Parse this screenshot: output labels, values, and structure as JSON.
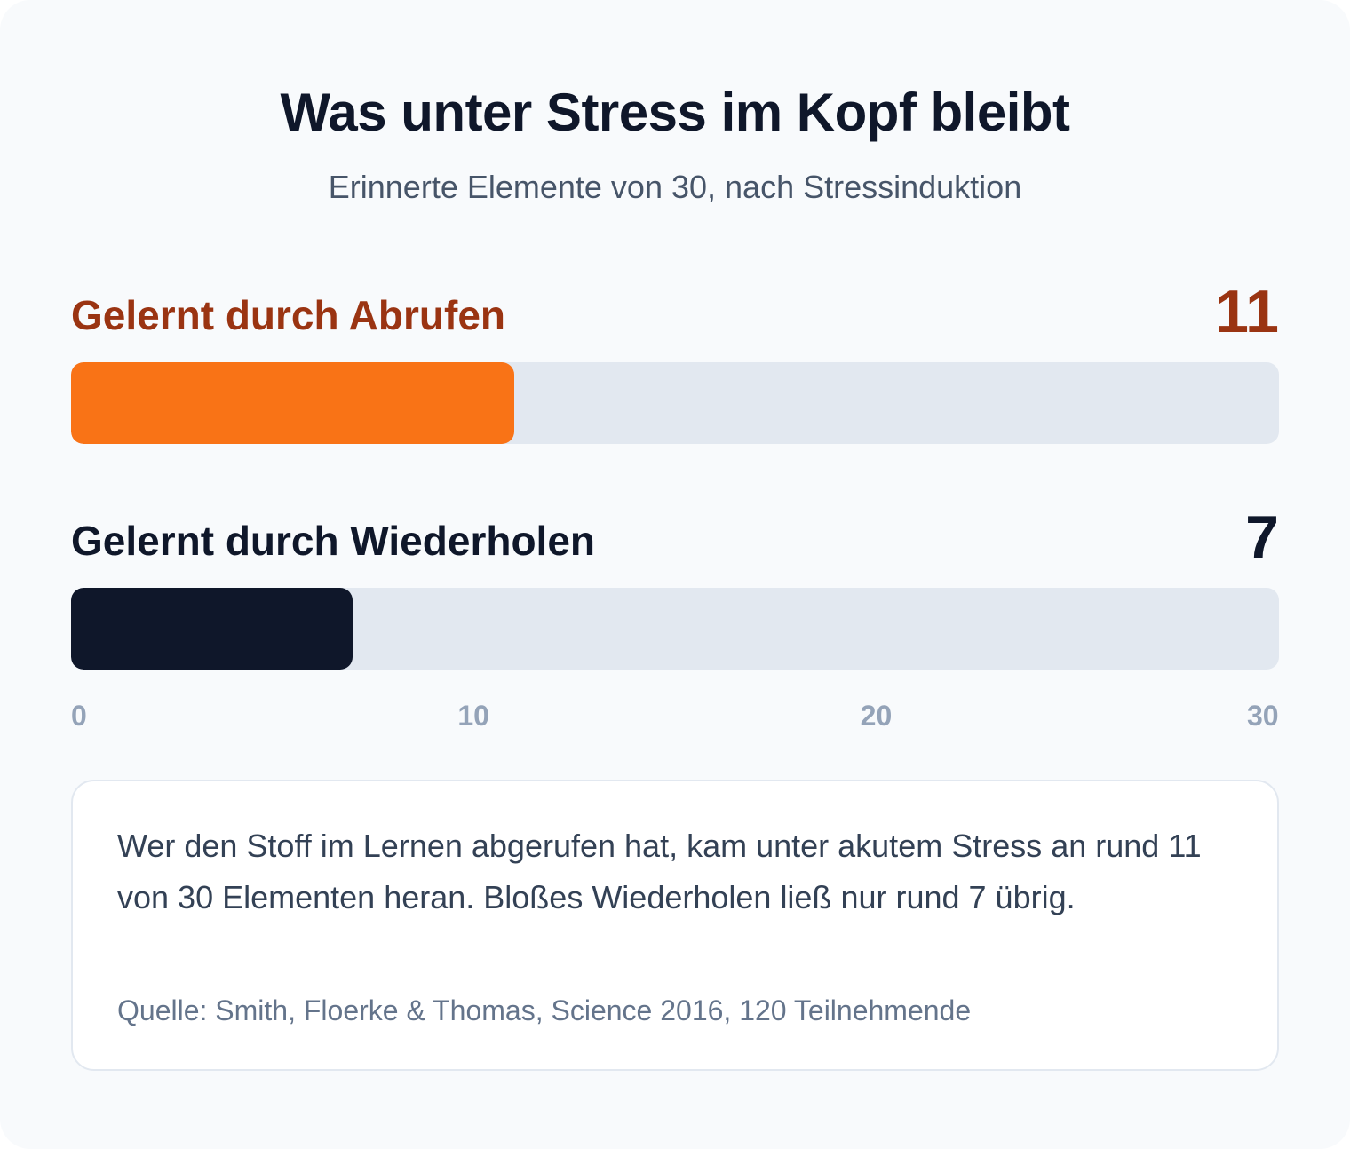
{
  "title": "Was unter Stress im Kopf bleibt",
  "subtitle": "Erinnerte Elemente von 30, nach Stressinduktion",
  "colors": {
    "accent": "#f97316",
    "accent_text": "#9a3412",
    "dark": "#0f172a",
    "track": "#e2e8f0",
    "tick": "#94a3b8"
  },
  "chart_data": {
    "type": "bar",
    "orientation": "horizontal",
    "categories": [
      "Gelernt durch Abrufen",
      "Gelernt durch Wiederholen"
    ],
    "values": [
      11,
      7
    ],
    "value_labels": [
      "11",
      "7"
    ],
    "xlim": [
      0,
      30
    ],
    "xticks": [
      0,
      10,
      20,
      30
    ],
    "xtick_labels": [
      "0",
      "10",
      "20",
      "30"
    ],
    "bar_colors": [
      "#f97316",
      "#0f172a"
    ],
    "label_colors": [
      "#9a3412",
      "#0f172a"
    ],
    "grid": false,
    "legend": "none"
  },
  "note": {
    "text": "Wer den Stoff im Lernen abgerufen hat, kam unter akutem Stress an rund 11 von 30 Elementen heran. Bloßes Wiederholen ließ nur rund 7 übrig.",
    "source": "Quelle: Smith, Floerke & Thomas, Science 2016, 120 Teilnehmende"
  }
}
